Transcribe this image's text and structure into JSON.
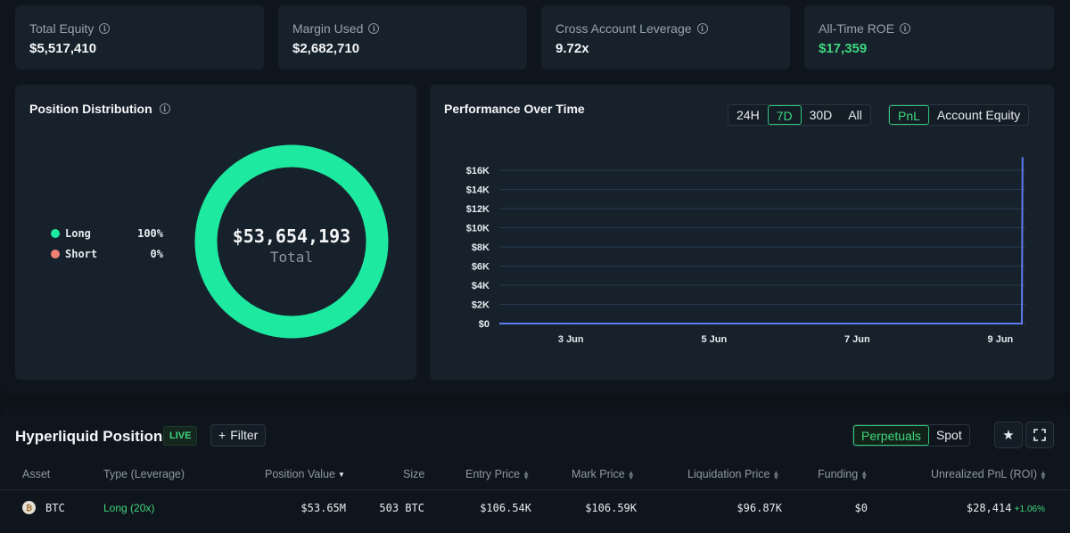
{
  "stats": [
    {
      "label": "Total Equity",
      "value": "$5,517,410"
    },
    {
      "label": "Margin Used",
      "value": "$2,682,710"
    },
    {
      "label": "Cross Account Leverage",
      "value": "9.72x"
    },
    {
      "label": "All-Time ROE",
      "value": "$17,359",
      "color": "#3fd67f"
    }
  ],
  "distribution": {
    "title": "Position Distribution",
    "legend": [
      {
        "name": "Long",
        "pct": "100%",
        "color": "#1de9a0"
      },
      {
        "name": "Short",
        "pct": "0%",
        "color": "#f07f74"
      }
    ],
    "long_fraction": 1.0,
    "total_value": "$53,654,193",
    "total_label": "Total",
    "ring_color": "#1de9a0"
  },
  "performance": {
    "title": "Performance Over Time",
    "ranges": [
      "24H",
      "7D",
      "30D",
      "All"
    ],
    "active_range": "7D",
    "metrics": [
      "PnL",
      "Account Equity"
    ],
    "active_metric": "PnL"
  },
  "chart_data": {
    "type": "line",
    "series": [
      {
        "x": [
          "2 Jun",
          "3 Jun",
          "4 Jun",
          "5 Jun",
          "6 Jun",
          "7 Jun",
          "8 Jun",
          "9 Jun",
          "9.3 Jun",
          "9.31 Jun"
        ],
        "values": [
          0,
          0,
          0,
          0,
          0,
          0,
          0,
          0,
          0,
          17359
        ]
      }
    ],
    "x_ticks": [
      "3 Jun",
      "5 Jun",
      "7 Jun",
      "9 Jun"
    ],
    "y_ticks": [
      "$0",
      "$2K",
      "$4K",
      "$6K",
      "$8K",
      "$10K",
      "$12K",
      "$14K",
      "$16K"
    ],
    "ylim": [
      0,
      16000
    ],
    "grid": true,
    "line_color": "#5e7cf0"
  },
  "positions": {
    "title": "Hyperliquid Positions",
    "live_badge": "LIVE",
    "filter_label": "Filter",
    "filter_icon": "plus-icon",
    "tabs": [
      "Perpetuals",
      "Spot"
    ],
    "active_tab": "Perpetuals",
    "columns": [
      "Asset",
      "Type (Leverage)",
      "Position Value",
      "Size",
      "Entry Price",
      "Mark Price",
      "Liquidation Price",
      "Funding",
      "Unrealized PnL (ROI)"
    ],
    "rows": [
      {
        "asset": "BTC",
        "type": "Long (20x)",
        "position_value": "$53.65M",
        "size": "503 BTC",
        "entry_price": "$106.54K",
        "mark_price": "$106.59K",
        "liquidation_price": "$96.87K",
        "funding": "$0",
        "pnl": "$28,414",
        "roi": "+1.06%"
      }
    ]
  }
}
